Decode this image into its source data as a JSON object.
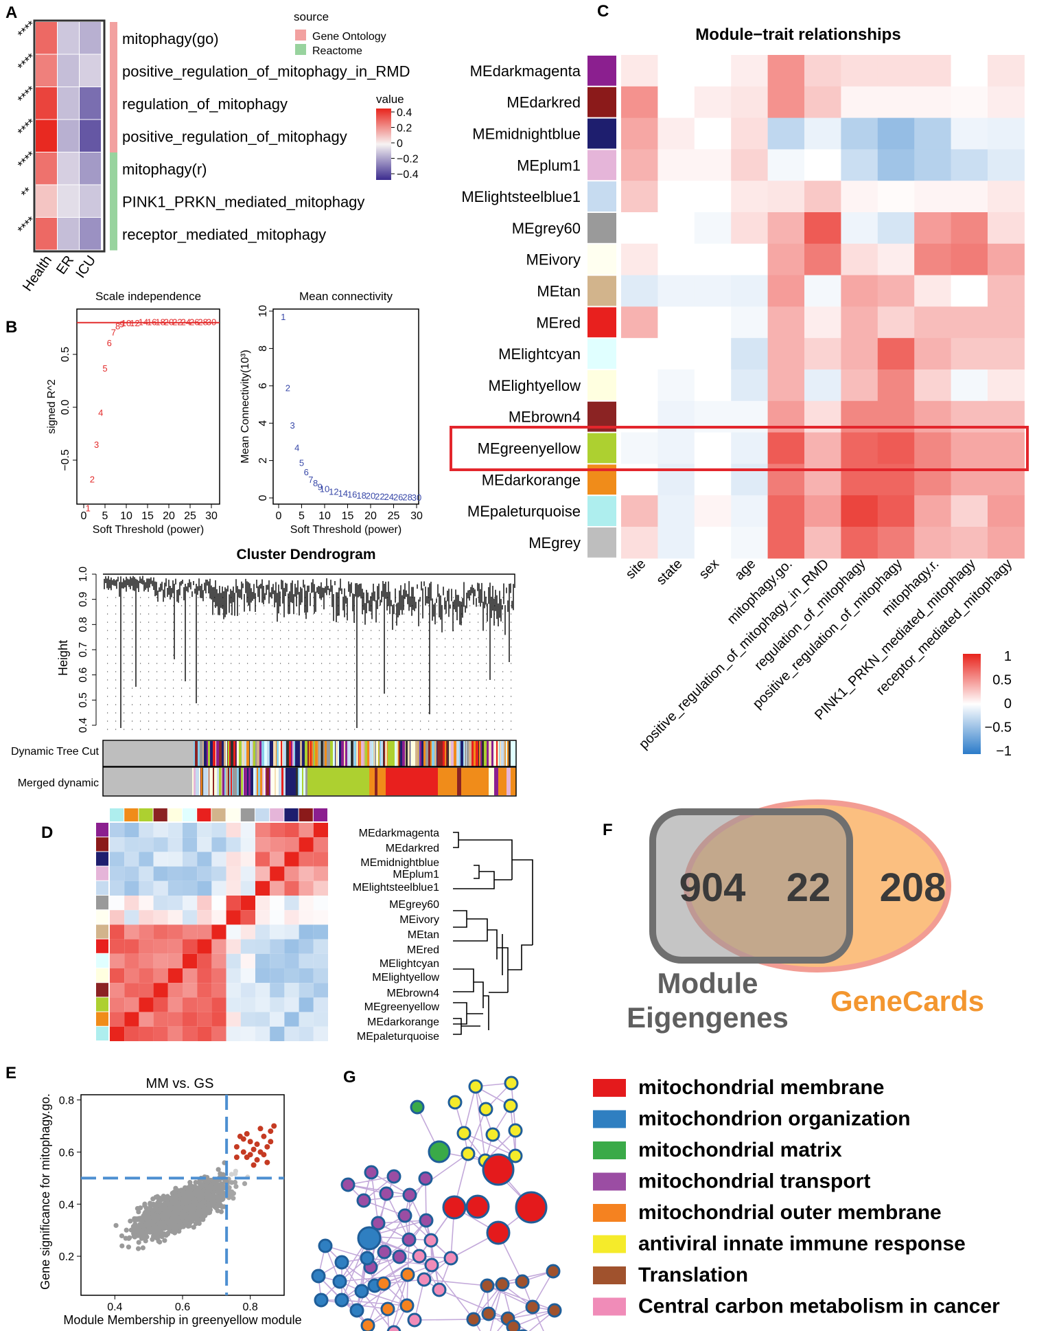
{
  "panel_letters": {
    "A": "A",
    "B": "B",
    "C": "C",
    "D": "D",
    "E": "E",
    "F": "F",
    "G": "G"
  },
  "panelA": {
    "columns": [
      "Health",
      "ER",
      "ICU"
    ],
    "rows": [
      "mitophagy(go)",
      "positive_regulation_of_mitophagy_in_RMD",
      "regulation_of_mitophagy",
      "positive_regulation_of_mitophagy",
      "mitophagy(r)",
      "PINK1_PRKN_mediated_mitophagy",
      "receptor_mediated_mitophagy"
    ],
    "significance": [
      "****",
      "****",
      "****",
      "****",
      "****",
      "**",
      "****"
    ],
    "values": [
      [
        0.3,
        -0.1,
        -0.15
      ],
      [
        0.25,
        -0.12,
        -0.08
      ],
      [
        0.38,
        -0.12,
        -0.3
      ],
      [
        0.44,
        -0.15,
        -0.35
      ],
      [
        0.28,
        -0.08,
        -0.2
      ],
      [
        0.1,
        -0.05,
        -0.1
      ],
      [
        0.3,
        -0.12,
        -0.22
      ]
    ],
    "source_per_row": [
      "Gene Ontology",
      "Gene Ontology",
      "Gene Ontology",
      "Gene Ontology",
      "Reactome",
      "Reactome",
      "Reactome"
    ],
    "source_title": "source",
    "source_legend": [
      {
        "label": "Gene Ontology",
        "color": "#F2A1A0"
      },
      {
        "label": "Reactome",
        "color": "#98D39E"
      }
    ],
    "value_title": "value",
    "value_ticks": [
      "0.4",
      "0.2",
      "0",
      "−0.2",
      "−0.4"
    ]
  },
  "panelB": {
    "scale": {
      "title": "Scale independence",
      "ylabel": "signed R^2",
      "xlabel": "Soft Threshold (power)",
      "xticks": [
        "0",
        "5",
        "10",
        "15",
        "20",
        "25",
        "30"
      ],
      "yticks": [
        "−0.5",
        "0.0",
        "0.5"
      ],
      "cutoff": 0.8,
      "points": [
        [
          1,
          -0.95
        ],
        [
          2,
          -0.68
        ],
        [
          3,
          -0.35
        ],
        [
          4,
          -0.05
        ],
        [
          5,
          0.37
        ],
        [
          6,
          0.61
        ],
        [
          7,
          0.71
        ],
        [
          8,
          0.77
        ],
        [
          9,
          0.79
        ],
        [
          10,
          0.8
        ],
        [
          12,
          0.8
        ],
        [
          14,
          0.81
        ],
        [
          16,
          0.81
        ],
        [
          18,
          0.81
        ],
        [
          20,
          0.81
        ],
        [
          22,
          0.81
        ],
        [
          24,
          0.81
        ],
        [
          26,
          0.81
        ],
        [
          28,
          0.81
        ],
        [
          30,
          0.81
        ]
      ]
    },
    "conn": {
      "title": "Mean connectivity",
      "ylabel": "Mean Connectivity(10³)",
      "xlabel": "Soft Threshold (power)",
      "xticks": [
        "0",
        "5",
        "10",
        "15",
        "20",
        "25",
        "30"
      ],
      "yticks": [
        "0",
        "2",
        "4",
        "6",
        "8",
        "10"
      ],
      "points": [
        [
          1,
          9.7
        ],
        [
          2,
          5.9
        ],
        [
          3,
          3.9
        ],
        [
          4,
          2.7
        ],
        [
          5,
          1.9
        ],
        [
          6,
          1.4
        ],
        [
          7,
          1.0
        ],
        [
          8,
          0.8
        ],
        [
          9,
          0.6
        ],
        [
          10,
          0.5
        ],
        [
          12,
          0.35
        ],
        [
          14,
          0.25
        ],
        [
          16,
          0.2
        ],
        [
          18,
          0.15
        ],
        [
          20,
          0.12
        ],
        [
          22,
          0.1
        ],
        [
          24,
          0.08
        ],
        [
          26,
          0.06
        ],
        [
          28,
          0.05
        ],
        [
          30,
          0.04
        ]
      ]
    },
    "dendro": {
      "title": "Cluster Dendrogram",
      "ylabel": "Height",
      "yticks": [
        "0.4",
        "0.5",
        "0.6",
        "0.7",
        "0.8",
        "0.9",
        "1.0"
      ],
      "row1": "Dynamic Tree Cut",
      "row2": "Merged dynamic"
    }
  },
  "panelC": {
    "title": "Module−trait relationships",
    "modules": [
      "MEdarkmagenta",
      "MEdarkred",
      "MEmidnightblue",
      "MEplum1",
      "MElightsteelblue1",
      "MEgrey60",
      "MEivory",
      "MEtan",
      "MEred",
      "MElightcyan",
      "MElightyellow",
      "MEbrown4",
      "MEgreenyellow",
      "MEdarkorange",
      "MEpaleturquoise",
      "MEgrey"
    ],
    "module_colors": [
      "#8B1F8F",
      "#8B1A1A",
      "#1E1E6E",
      "#E5B5D9",
      "#C6DBF0",
      "#9A9A9A",
      "#FFFFF0",
      "#D2B48C",
      "#E8201E",
      "#E0FFFF",
      "#FFFFE0",
      "#8B2323",
      "#ADD030",
      "#F08C1A",
      "#AEEEEE",
      "#BEBEBE"
    ],
    "traits": [
      "site",
      "state",
      "sex",
      "age",
      "mitophagy.go.",
      "positive_regulation_of_mitophagy_in_RMD",
      "regulation_of_mitophagy",
      "positive_regulation_of_mitophagy",
      "mitophagy.r.",
      "PINK1_PRKN_mediated_mitophagy",
      "receptor_mediated_mitophagy"
    ],
    "matrix": [
      [
        0.1,
        0,
        0,
        0.08,
        0.5,
        0.2,
        0.15,
        0.15,
        0.15,
        0,
        0.12
      ],
      [
        0.5,
        0,
        0.08,
        0.12,
        0.5,
        0.25,
        0.05,
        0.05,
        0.05,
        0.03,
        0.08
      ],
      [
        0.4,
        0.08,
        0,
        0.15,
        -0.3,
        -0.1,
        -0.35,
        -0.5,
        -0.35,
        -0.08,
        -0.1
      ],
      [
        0.35,
        0.05,
        0.05,
        0.2,
        -0.05,
        0,
        -0.25,
        -0.45,
        -0.35,
        -0.25,
        -0.15
      ],
      [
        0.25,
        0,
        0,
        0.1,
        0.12,
        0.25,
        0.05,
        0.02,
        0.05,
        0.05,
        0.1
      ],
      [
        0,
        0,
        -0.05,
        0.15,
        0.35,
        0.75,
        -0.08,
        -0.2,
        0.45,
        0.55,
        0.15
      ],
      [
        0.1,
        0,
        0,
        0,
        0.4,
        0.6,
        0.15,
        0.08,
        0.55,
        0.6,
        0.4
      ],
      [
        -0.15,
        -0.08,
        -0.08,
        -0.1,
        0.45,
        -0.05,
        0.4,
        0.35,
        0.1,
        0,
        0.3
      ],
      [
        0.35,
        0,
        0,
        -0.05,
        0.35,
        0.08,
        0.35,
        0.2,
        0.3,
        0.3,
        0.3
      ],
      [
        0,
        0,
        0,
        -0.2,
        0.35,
        0.2,
        0.35,
        0.7,
        0.35,
        0.25,
        0.25
      ],
      [
        0,
        -0.05,
        0,
        -0.15,
        0.35,
        -0.12,
        0.3,
        0.55,
        0.2,
        -0.05,
        0.1
      ],
      [
        0,
        -0.08,
        -0.05,
        -0.05,
        0.45,
        0.15,
        0.55,
        0.55,
        0.4,
        0.3,
        0.3
      ],
      [
        -0.05,
        -0.08,
        0,
        -0.1,
        0.75,
        0.35,
        0.7,
        0.75,
        0.55,
        0.4,
        0.4
      ],
      [
        0,
        -0.12,
        0,
        -0.15,
        0.6,
        0.35,
        0.7,
        0.7,
        0.55,
        0.4,
        0.4
      ],
      [
        0.3,
        -0.1,
        0.05,
        -0.08,
        0.7,
        0.45,
        0.85,
        0.75,
        0.4,
        0.2,
        0.45
      ],
      [
        0.15,
        -0.1,
        0,
        -0.05,
        0.7,
        0.3,
        0.7,
        0.6,
        0.35,
        0.3,
        0.4
      ]
    ],
    "highlight": "MEgreenyellow",
    "legend_ticks": [
      "1",
      "0.5",
      "0",
      "−0.5",
      "−1"
    ]
  },
  "panelD": {
    "modules": [
      "MEdarkmagenta",
      "MEdarkred",
      "MEmidnightblue",
      "MEplum1",
      "MElightsteelblue1",
      "MEgrey60",
      "MEivory",
      "MEtan",
      "MEred",
      "MElightcyan",
      "MElightyellow",
      "MEbrown4",
      "MEgreenyellow",
      "MEdarkorange",
      "MEpaleturquoise"
    ]
  },
  "panelE": {
    "title": "MM vs. GS",
    "xlabel": "Module Membership in greenyellow module",
    "ylabel": "Gene significance for mitophagy.go.",
    "xticks": [
      "0.4",
      "0.6",
      "0.8"
    ],
    "yticks": [
      "0.2",
      "0.4",
      "0.6",
      "0.8"
    ],
    "xlim": [
      0.3,
      0.9
    ],
    "ylim": [
      0.05,
      0.82
    ],
    "thresholds": {
      "x": 0.73,
      "y": 0.5
    }
  },
  "panelF": {
    "left_count": "904",
    "overlap_count": "22",
    "right_count": "208",
    "left_label_1": "Module",
    "left_label_2": "Eigengenes",
    "right_label": "GeneCards"
  },
  "panelG": {
    "legend": [
      {
        "label": "mitochondrial membrane",
        "color": "#E41A1C"
      },
      {
        "label": "mitochondrion organization",
        "color": "#2F7FC1"
      },
      {
        "label": "mitochondrial matrix",
        "color": "#3AAA48"
      },
      {
        "label": "mitochondrial transport",
        "color": "#9B4DA3"
      },
      {
        "label": "mitochondrial outer membrane",
        "color": "#F58220"
      },
      {
        "label": "antiviral innate immune response",
        "color": "#F5EB2A"
      },
      {
        "label": "Translation",
        "color": "#A0522D"
      },
      {
        "label": "Central carbon metabolism in cancer",
        "color": "#F08CB8"
      }
    ]
  }
}
